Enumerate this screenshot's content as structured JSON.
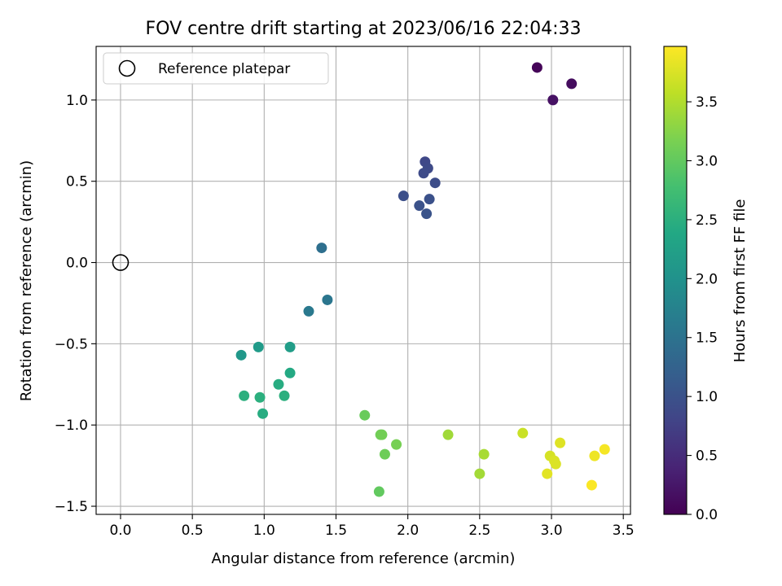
{
  "chart_data": {
    "type": "scatter",
    "title": "FOV centre drift starting at 2023/06/16 22:04:33",
    "xlabel": "Angular distance from reference (arcmin)",
    "ylabel": "Rotation from reference (arcmin)",
    "xlim": [
      -0.17,
      3.55
    ],
    "ylim": [
      -1.55,
      1.33
    ],
    "xticks": [
      0.0,
      0.5,
      1.0,
      1.5,
      2.0,
      2.5,
      3.0,
      3.5
    ],
    "xtick_labels": [
      "0.0",
      "0.5",
      "1.0",
      "1.5",
      "2.0",
      "2.5",
      "3.0",
      "3.5"
    ],
    "yticks": [
      -1.5,
      -1.0,
      -0.5,
      0.0,
      0.5,
      1.0
    ],
    "ytick_labels": [
      "−1.5",
      "−1.0",
      "−0.5",
      "0.0",
      "0.5",
      "1.0"
    ],
    "grid": true,
    "legend": {
      "placement": "top-left",
      "entries": [
        "Reference platepar"
      ]
    },
    "reference_point": {
      "x": 0.0,
      "y": 0.0
    },
    "colorbar": {
      "label": "Hours from first FF file",
      "colormap": "viridis",
      "range": [
        0.0,
        3.97
      ],
      "ticks": [
        0.0,
        0.5,
        1.0,
        1.5,
        2.0,
        2.5,
        3.0,
        3.5
      ],
      "tick_labels": [
        "0.0",
        "0.5",
        "1.0",
        "1.5",
        "2.0",
        "2.5",
        "3.0",
        "3.5"
      ]
    },
    "points": [
      {
        "x": 2.9,
        "y": 1.2,
        "c": 0.05
      },
      {
        "x": 3.14,
        "y": 1.1,
        "c": 0.12
      },
      {
        "x": 3.01,
        "y": 1.0,
        "c": 0.18
      },
      {
        "x": 2.12,
        "y": 0.62,
        "c": 0.85
      },
      {
        "x": 2.14,
        "y": 0.58,
        "c": 0.88
      },
      {
        "x": 2.11,
        "y": 0.55,
        "c": 0.9
      },
      {
        "x": 2.19,
        "y": 0.49,
        "c": 0.92
      },
      {
        "x": 1.97,
        "y": 0.41,
        "c": 0.95
      },
      {
        "x": 2.15,
        "y": 0.39,
        "c": 0.98
      },
      {
        "x": 2.08,
        "y": 0.35,
        "c": 1.0
      },
      {
        "x": 2.13,
        "y": 0.3,
        "c": 1.02
      },
      {
        "x": 1.4,
        "y": 0.09,
        "c": 1.45
      },
      {
        "x": 1.44,
        "y": -0.23,
        "c": 1.55
      },
      {
        "x": 1.31,
        "y": -0.3,
        "c": 1.6
      },
      {
        "x": 0.84,
        "y": -0.57,
        "c": 2.1
      },
      {
        "x": 0.96,
        "y": -0.52,
        "c": 2.15
      },
      {
        "x": 1.18,
        "y": -0.52,
        "c": 2.2
      },
      {
        "x": 1.18,
        "y": -0.68,
        "c": 2.4
      },
      {
        "x": 1.1,
        "y": -0.75,
        "c": 2.45
      },
      {
        "x": 0.86,
        "y": -0.82,
        "c": 2.5
      },
      {
        "x": 0.97,
        "y": -0.83,
        "c": 2.5
      },
      {
        "x": 1.14,
        "y": -0.82,
        "c": 2.5
      },
      {
        "x": 0.99,
        "y": -0.93,
        "c": 2.45
      },
      {
        "x": 1.7,
        "y": -0.94,
        "c": 3.05
      },
      {
        "x": 1.81,
        "y": -1.06,
        "c": 3.1
      },
      {
        "x": 1.82,
        "y": -1.06,
        "c": 3.12
      },
      {
        "x": 1.92,
        "y": -1.12,
        "c": 3.15
      },
      {
        "x": 1.84,
        "y": -1.18,
        "c": 3.08
      },
      {
        "x": 1.8,
        "y": -1.41,
        "c": 3.0
      },
      {
        "x": 2.28,
        "y": -1.06,
        "c": 3.4
      },
      {
        "x": 2.53,
        "y": -1.18,
        "c": 3.45
      },
      {
        "x": 2.5,
        "y": -1.3,
        "c": 3.42
      },
      {
        "x": 2.8,
        "y": -1.05,
        "c": 3.65
      },
      {
        "x": 2.99,
        "y": -1.19,
        "c": 3.72
      },
      {
        "x": 3.02,
        "y": -1.22,
        "c": 3.75
      },
      {
        "x": 3.06,
        "y": -1.11,
        "c": 3.78
      },
      {
        "x": 3.03,
        "y": -1.24,
        "c": 3.76
      },
      {
        "x": 2.97,
        "y": -1.3,
        "c": 3.8
      },
      {
        "x": 3.3,
        "y": -1.19,
        "c": 3.88
      },
      {
        "x": 3.37,
        "y": -1.15,
        "c": 3.92
      },
      {
        "x": 3.28,
        "y": -1.37,
        "c": 3.95
      }
    ]
  }
}
